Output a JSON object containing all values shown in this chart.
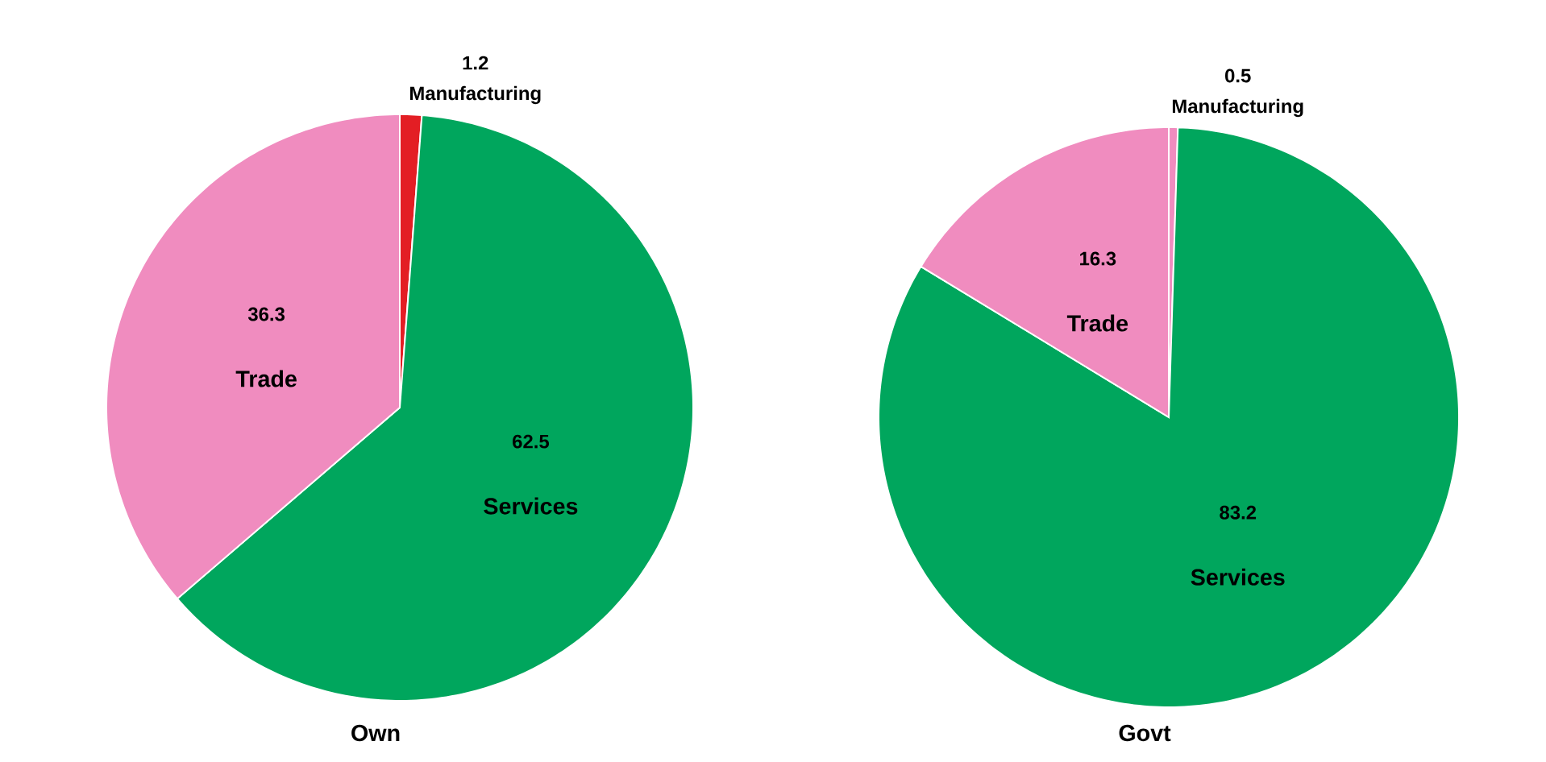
{
  "chart_data": [
    {
      "type": "pie",
      "title": "Own",
      "categories": [
        "Manufacturing",
        "Services",
        "Trade"
      ],
      "values": [
        1.2,
        62.5,
        36.3
      ],
      "colors": [
        "#e31e24",
        "#00a65d",
        "#f08cbf"
      ],
      "data_labels": true
    },
    {
      "type": "pie",
      "title": "Govt",
      "categories": [
        "Manufacturing",
        "Services",
        "Trade"
      ],
      "values": [
        0.5,
        83.2,
        16.3
      ],
      "colors": [
        "#f08cbf",
        "#00a65d",
        "#f08cbf"
      ],
      "data_labels": true
    }
  ]
}
